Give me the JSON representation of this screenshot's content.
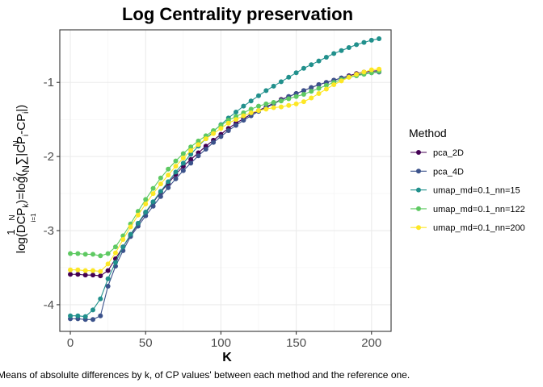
{
  "chart_data": {
    "type": "line",
    "title": "Log Centrality preservation",
    "xlabel": "K",
    "ylabel_parts": {
      "head": "log(DCP",
      "head_sub": "k",
      "mid1": ")=log(",
      "frac_num": "1",
      "frac_den": "N",
      "sum_top": "N",
      "sum_sym": "∑",
      "sum_bottom": "i=1",
      "abs_open": "|CP",
      "cp1_sup": "2",
      "cp1_sub": "i",
      "dash": "-CP",
      "cp2_sup": "N",
      "cp2_sub": "i",
      "tail": "|)"
    },
    "caption": "Means of absolulte differences by k, of CP values' between each method and the reference one.",
    "xlim": [
      -7,
      213
    ],
    "ylim": [
      -4.36,
      -0.29
    ],
    "x_ticks": [
      0,
      50,
      100,
      150,
      200
    ],
    "x_tick_labels": [
      "0",
      "50",
      "100",
      "150",
      "200"
    ],
    "y_ticks": [
      -4,
      -3,
      -2,
      -1
    ],
    "y_tick_labels": [
      "-4",
      "-3",
      "-2",
      "-1"
    ],
    "grid": true,
    "legend": {
      "title": "Method",
      "position": "right"
    },
    "x": [
      0,
      5,
      10,
      15,
      20,
      25,
      30,
      35,
      40,
      45,
      50,
      55,
      60,
      65,
      70,
      75,
      80,
      85,
      90,
      95,
      100,
      105,
      110,
      115,
      120,
      125,
      130,
      135,
      140,
      145,
      150,
      155,
      160,
      165,
      170,
      175,
      180,
      185,
      190,
      195,
      200,
      205
    ],
    "series": [
      {
        "name": "pca_2D",
        "color": "#440154",
        "values": [
          -3.59,
          -3.59,
          -3.6,
          -3.6,
          -3.61,
          -3.54,
          -3.38,
          -3.22,
          -3.06,
          -2.91,
          -2.76,
          -2.62,
          -2.48,
          -2.36,
          -2.24,
          -2.13,
          -2.04,
          -1.95,
          -1.86,
          -1.78,
          -1.7,
          -1.62,
          -1.55,
          -1.49,
          -1.43,
          -1.38,
          -1.33,
          -1.28,
          -1.23,
          -1.19,
          -1.15,
          -1.11,
          -1.07,
          -1.03,
          -1.0,
          -0.97,
          -0.94,
          -0.91,
          -0.88,
          -0.86,
          -0.85,
          -0.84
        ]
      },
      {
        "name": "pca_4D",
        "color": "#3b528b",
        "values": [
          -4.19,
          -4.19,
          -4.2,
          -4.2,
          -4.15,
          -3.75,
          -3.48,
          -3.27,
          -3.08,
          -2.94,
          -2.8,
          -2.67,
          -2.54,
          -2.42,
          -2.3,
          -2.19,
          -2.09,
          -1.99,
          -1.9,
          -1.81,
          -1.73,
          -1.65,
          -1.58,
          -1.51,
          -1.45,
          -1.39,
          -1.34,
          -1.29,
          -1.24,
          -1.19,
          -1.15,
          -1.11,
          -1.07,
          -1.03,
          -1.0,
          -0.97,
          -0.94,
          -0.92,
          -0.9,
          -0.88,
          -0.87,
          -0.86
        ]
      },
      {
        "name": "umap_md=0.1_nn=15",
        "color": "#21908c",
        "values": [
          -4.15,
          -4.15,
          -4.16,
          -4.07,
          -3.92,
          -3.65,
          -3.43,
          -3.22,
          -3.05,
          -2.9,
          -2.75,
          -2.61,
          -2.47,
          -2.34,
          -2.21,
          -2.09,
          -1.97,
          -1.86,
          -1.76,
          -1.66,
          -1.57,
          -1.48,
          -1.4,
          -1.32,
          -1.25,
          -1.18,
          -1.11,
          -1.05,
          -0.99,
          -0.93,
          -0.87,
          -0.81,
          -0.76,
          -0.71,
          -0.66,
          -0.61,
          -0.57,
          -0.53,
          -0.49,
          -0.46,
          -0.43,
          -0.41
        ]
      },
      {
        "name": "umap_md=0.1_nn=122",
        "color": "#5ec962",
        "values": [
          -3.31,
          -3.31,
          -3.32,
          -3.32,
          -3.34,
          -3.31,
          -3.22,
          -3.07,
          -2.91,
          -2.74,
          -2.58,
          -2.43,
          -2.29,
          -2.17,
          -2.06,
          -1.96,
          -1.87,
          -1.79,
          -1.72,
          -1.65,
          -1.58,
          -1.51,
          -1.46,
          -1.41,
          -1.36,
          -1.32,
          -1.29,
          -1.27,
          -1.25,
          -1.22,
          -1.19,
          -1.16,
          -1.12,
          -1.08,
          -1.04,
          -1.0,
          -0.96,
          -0.93,
          -0.91,
          -0.89,
          -0.87,
          -0.85
        ]
      },
      {
        "name": "umap_md=0.1_nn=200",
        "color": "#fde725",
        "values": [
          -3.53,
          -3.53,
          -3.54,
          -3.54,
          -3.55,
          -3.45,
          -3.3,
          -3.12,
          -2.95,
          -2.79,
          -2.64,
          -2.5,
          -2.37,
          -2.25,
          -2.13,
          -2.02,
          -1.92,
          -1.84,
          -1.76,
          -1.69,
          -1.62,
          -1.55,
          -1.5,
          -1.45,
          -1.41,
          -1.38,
          -1.36,
          -1.34,
          -1.33,
          -1.31,
          -1.29,
          -1.26,
          -1.21,
          -1.15,
          -1.09,
          -1.03,
          -0.98,
          -0.93,
          -0.89,
          -0.86,
          -0.83,
          -0.82
        ]
      }
    ]
  }
}
